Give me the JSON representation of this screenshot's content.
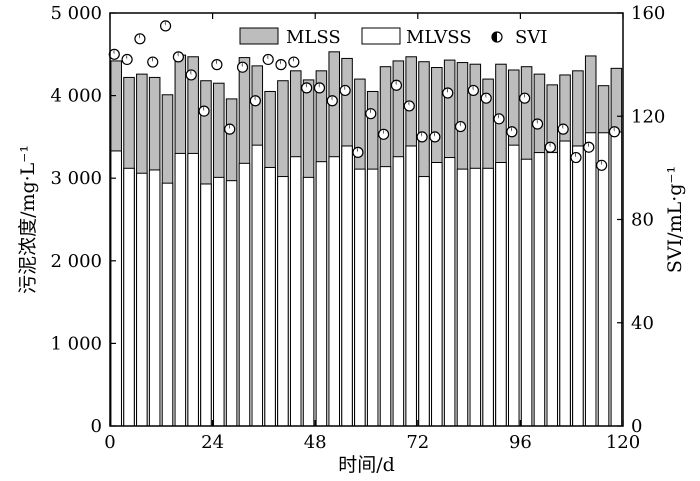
{
  "chart_data": {
    "type": "bar",
    "xlabel": "时间/d",
    "ylabel": "污泥浓度/mg·L⁻¹",
    "y2label": "SVI/mL·g⁻¹",
    "xlim": [
      0,
      120
    ],
    "ylim": [
      0,
      5000
    ],
    "y2lim": [
      0,
      160
    ],
    "xticks": [
      0,
      24,
      48,
      72,
      96,
      120
    ],
    "xtick_labels": [
      "0",
      "24",
      "48",
      "72",
      "96",
      "120"
    ],
    "yticks": [
      0,
      1000,
      2000,
      3000,
      4000,
      5000
    ],
    "ytick_labels": [
      "0",
      "1 000",
      "2 000",
      "3 000",
      "4 000",
      "5 000"
    ],
    "y2ticks": [
      0,
      40,
      80,
      120,
      160
    ],
    "y2tick_labels": [
      "0",
      "40",
      "80",
      "120",
      "160"
    ],
    "legend_position": "top",
    "grid": false,
    "series": [
      {
        "name": "MLSS",
        "style": "bar",
        "color": "#bdbdbd",
        "x": [
          0,
          3,
          6,
          9,
          12,
          15,
          18,
          21,
          24,
          27,
          30,
          33,
          36,
          39,
          42,
          45,
          48,
          51,
          54,
          57,
          60,
          63,
          66,
          69,
          72,
          75,
          78,
          81,
          84,
          87,
          90,
          93,
          96,
          99,
          102,
          105,
          108,
          111,
          114,
          117
        ],
        "values": [
          4420,
          4220,
          4260,
          4220,
          4010,
          4490,
          4470,
          4180,
          4150,
          3960,
          4460,
          4360,
          4050,
          4180,
          4300,
          4190,
          4300,
          4530,
          4450,
          4200,
          4050,
          4350,
          4420,
          4470,
          4410,
          4340,
          4430,
          4400,
          4380,
          4200,
          4380,
          4310,
          4350,
          4260,
          4130,
          4250,
          4300,
          4480,
          4120,
          4330
        ]
      },
      {
        "name": "MLVSS",
        "style": "bar",
        "color": "#ffffff",
        "x": [
          0,
          3,
          6,
          9,
          12,
          15,
          18,
          21,
          24,
          27,
          30,
          33,
          36,
          39,
          42,
          45,
          48,
          51,
          54,
          57,
          60,
          63,
          66,
          69,
          72,
          75,
          78,
          81,
          84,
          87,
          90,
          93,
          96,
          99,
          102,
          105,
          108,
          111,
          114,
          117
        ],
        "values": [
          3330,
          3120,
          3060,
          3100,
          2940,
          3300,
          3300,
          2930,
          3010,
          2970,
          3180,
          3400,
          3130,
          3020,
          3260,
          3010,
          3200,
          3260,
          3390,
          3110,
          3110,
          3140,
          3260,
          3390,
          3020,
          3190,
          3250,
          3110,
          3120,
          3120,
          3190,
          3400,
          3230,
          3310,
          3310,
          3450,
          3390,
          3550,
          3550,
          3560
        ]
      },
      {
        "name": "SVI",
        "style": "scatter",
        "color": "#000000",
        "x": [
          1,
          4,
          7,
          10,
          13,
          16,
          19,
          22,
          25,
          28,
          31,
          34,
          37,
          40,
          43,
          46,
          49,
          52,
          55,
          58,
          61,
          64,
          67,
          70,
          73,
          76,
          79,
          82,
          85,
          88,
          91,
          94,
          97,
          100,
          103,
          106,
          109,
          112,
          115,
          118
        ],
        "values": [
          144,
          142,
          150,
          141,
          155,
          143,
          136,
          122,
          140,
          115,
          139,
          126,
          142,
          140,
          141,
          131,
          131,
          126,
          130,
          106,
          121,
          113,
          132,
          124,
          112,
          112,
          129,
          116,
          130,
          127,
          119,
          114,
          127,
          117,
          108,
          115,
          104,
          108,
          101,
          114
        ]
      }
    ]
  }
}
